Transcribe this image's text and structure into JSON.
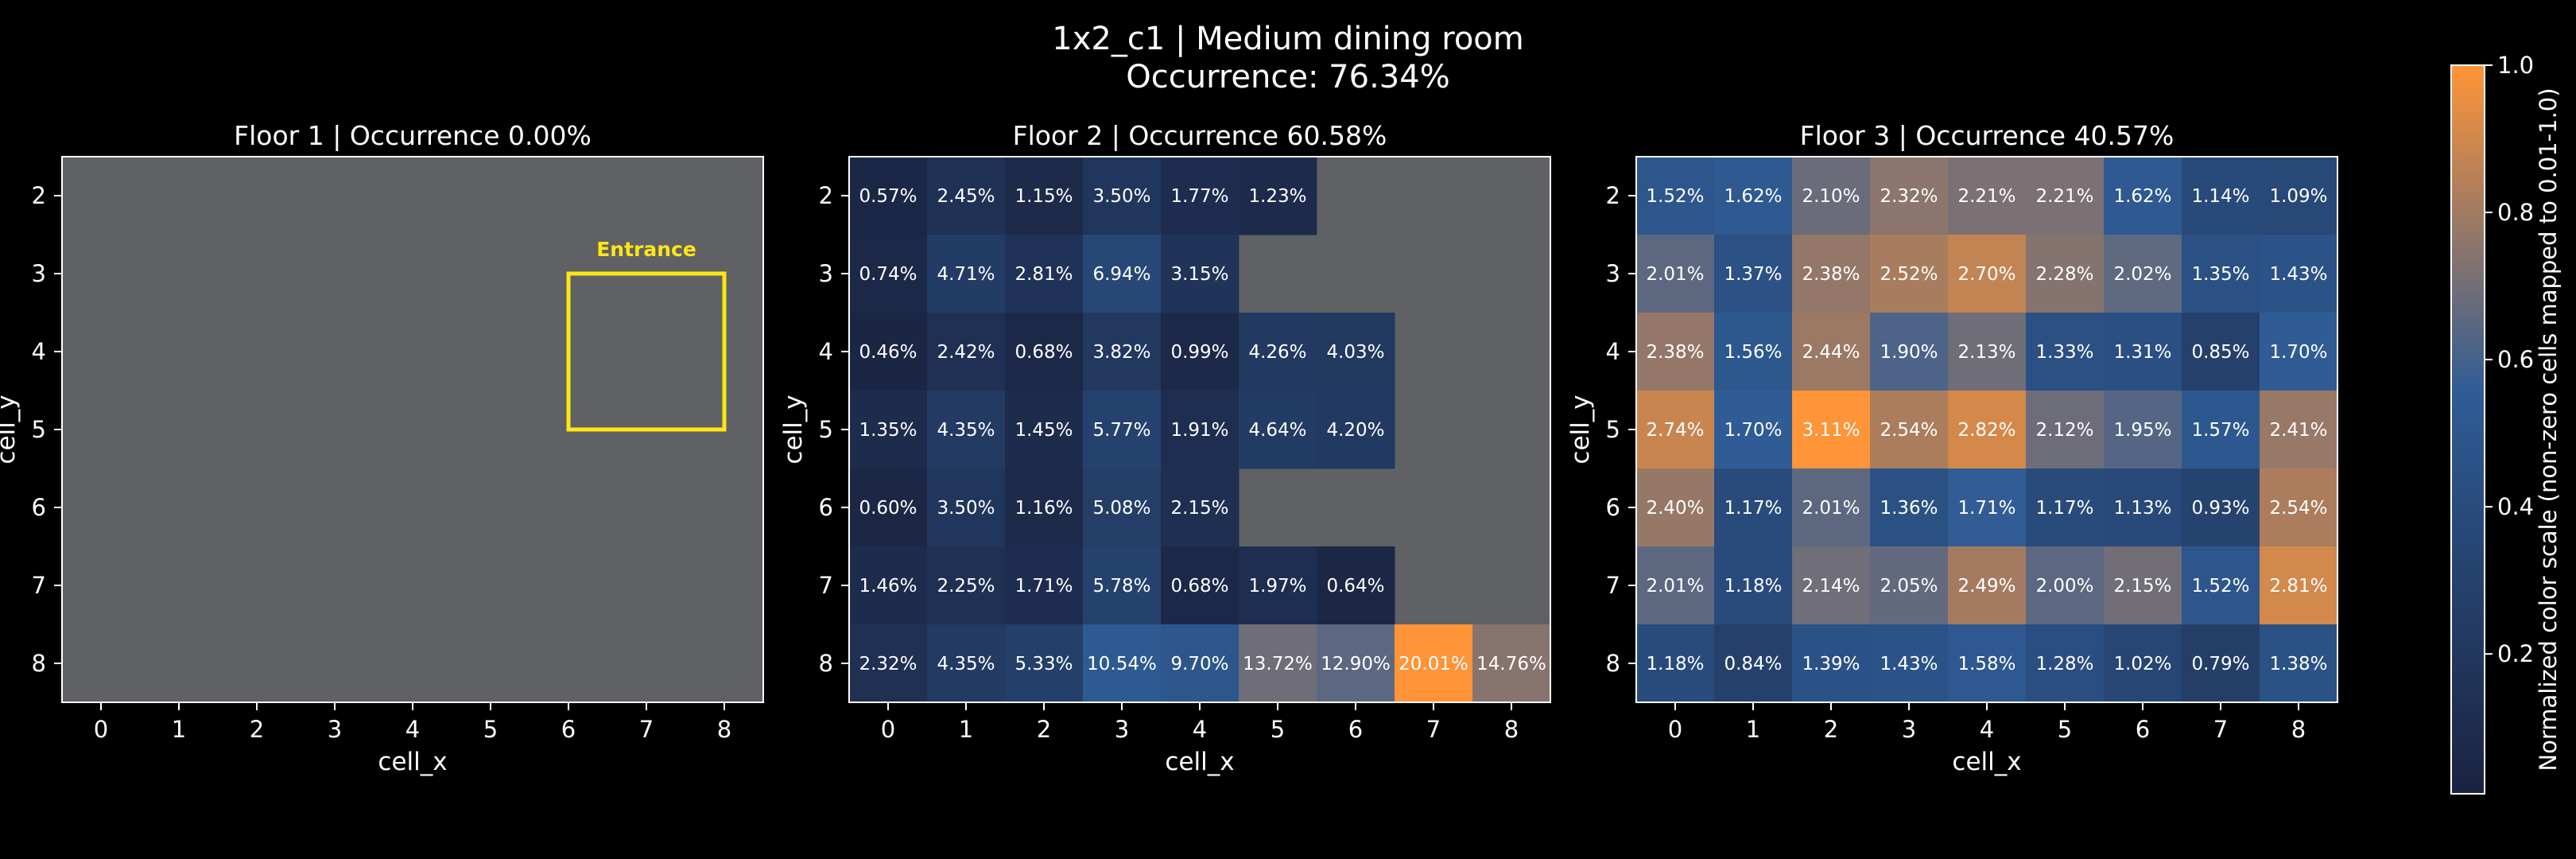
{
  "title": {
    "line1": "1x2_c1 | Medium dining room",
    "line2": "Occurrence: 76.34%"
  },
  "colors": {
    "background": "#000000",
    "empty_cell": "#5f6164",
    "cmap_low": "#1a2340",
    "cmap_mid": "#2f5c95",
    "cmap_high": "#ff9438",
    "entrance": "#ffe614",
    "text": "#ffffff"
  },
  "colorbar": {
    "label": "Normalized color scale (non-zero cells mapped to 0.01-1.0)",
    "ticks": [
      "0.2",
      "0.4",
      "0.6",
      "0.8",
      "1.0"
    ],
    "tick_values": [
      0.2,
      0.4,
      0.6,
      0.8,
      1.0
    ],
    "range": [
      0.01,
      1.0
    ]
  },
  "chart_data": [
    {
      "type": "heatmap",
      "title": "Floor 1 | Occurrence 0.00%",
      "xlabel": "cell_x",
      "ylabel": "cell_y",
      "x": [
        0,
        1,
        2,
        3,
        4,
        5,
        6,
        7,
        8
      ],
      "y": [
        2,
        3,
        4,
        5,
        6,
        7,
        8
      ],
      "x_ticks": [
        "0",
        "1",
        "2",
        "3",
        "4",
        "5",
        "6",
        "7",
        "8"
      ],
      "y_ticks": [
        "2",
        "3",
        "4",
        "5",
        "6",
        "7",
        "8"
      ],
      "values": [
        [
          null,
          null,
          null,
          null,
          null,
          null,
          null,
          null,
          null
        ],
        [
          null,
          null,
          null,
          null,
          null,
          null,
          null,
          null,
          null
        ],
        [
          null,
          null,
          null,
          null,
          null,
          null,
          null,
          null,
          null
        ],
        [
          null,
          null,
          null,
          null,
          null,
          null,
          null,
          null,
          null
        ],
        [
          null,
          null,
          null,
          null,
          null,
          null,
          null,
          null,
          null
        ],
        [
          null,
          null,
          null,
          null,
          null,
          null,
          null,
          null,
          null
        ],
        [
          null,
          null,
          null,
          null,
          null,
          null,
          null,
          null,
          null
        ]
      ],
      "labels": [
        [
          "",
          "",
          "",
          "",
          "",
          "",
          "",
          "",
          ""
        ],
        [
          "",
          "",
          "",
          "",
          "",
          "",
          "",
          "",
          ""
        ],
        [
          "",
          "",
          "",
          "",
          "",
          "",
          "",
          "",
          ""
        ],
        [
          "",
          "",
          "",
          "",
          "",
          "",
          "",
          "",
          ""
        ],
        [
          "",
          "",
          "",
          "",
          "",
          "",
          "",
          "",
          ""
        ],
        [
          "",
          "",
          "",
          "",
          "",
          "",
          "",
          "",
          ""
        ],
        [
          "",
          "",
          "",
          "",
          "",
          "",
          "",
          "",
          ""
        ]
      ],
      "entrance": {
        "label": "Entrance",
        "x_range": [
          7,
          8
        ],
        "y_range": [
          4,
          5
        ]
      }
    },
    {
      "type": "heatmap",
      "title": "Floor 2 | Occurrence 60.58%",
      "xlabel": "cell_x",
      "ylabel": "cell_y",
      "x": [
        0,
        1,
        2,
        3,
        4,
        5,
        6,
        7,
        8
      ],
      "y": [
        2,
        3,
        4,
        5,
        6,
        7,
        8
      ],
      "x_ticks": [
        "0",
        "1",
        "2",
        "3",
        "4",
        "5",
        "6",
        "7",
        "8"
      ],
      "y_ticks": [
        "2",
        "3",
        "4",
        "5",
        "6",
        "7",
        "8"
      ],
      "values": [
        [
          0.57,
          2.45,
          1.15,
          3.5,
          1.77,
          1.23,
          null,
          null,
          null
        ],
        [
          0.74,
          4.71,
          2.81,
          6.94,
          3.15,
          null,
          null,
          null,
          null
        ],
        [
          0.46,
          2.42,
          0.68,
          3.82,
          0.99,
          4.26,
          4.03,
          null,
          null
        ],
        [
          1.35,
          4.35,
          1.45,
          5.77,
          1.91,
          4.64,
          4.2,
          null,
          null
        ],
        [
          0.6,
          3.5,
          1.16,
          5.08,
          2.15,
          null,
          null,
          null,
          null
        ],
        [
          1.46,
          2.25,
          1.71,
          5.78,
          0.68,
          1.97,
          0.64,
          null,
          null
        ],
        [
          2.32,
          4.35,
          5.33,
          10.54,
          9.7,
          13.72,
          12.9,
          20.01,
          14.76
        ]
      ],
      "labels": [
        [
          "0.57%",
          "2.45%",
          "1.15%",
          "3.50%",
          "1.77%",
          "1.23%",
          "",
          "",
          ""
        ],
        [
          "0.74%",
          "4.71%",
          "2.81%",
          "6.94%",
          "3.15%",
          "",
          "",
          "",
          ""
        ],
        [
          "0.46%",
          "2.42%",
          "0.68%",
          "3.82%",
          "0.99%",
          "4.26%",
          "4.03%",
          "",
          ""
        ],
        [
          "1.35%",
          "4.35%",
          "1.45%",
          "5.77%",
          "1.91%",
          "4.64%",
          "4.20%",
          "",
          ""
        ],
        [
          "0.60%",
          "3.50%",
          "1.16%",
          "5.08%",
          "2.15%",
          "",
          "",
          "",
          ""
        ],
        [
          "1.46%",
          "2.25%",
          "1.71%",
          "5.78%",
          "0.68%",
          "1.97%",
          "0.64%",
          "",
          ""
        ],
        [
          "2.32%",
          "4.35%",
          "5.33%",
          "10.54%",
          "9.70%",
          "13.72%",
          "12.90%",
          "20.01%",
          "14.76%"
        ]
      ]
    },
    {
      "type": "heatmap",
      "title": "Floor 3 | Occurrence 40.57%",
      "xlabel": "cell_x",
      "ylabel": "cell_y",
      "x": [
        0,
        1,
        2,
        3,
        4,
        5,
        6,
        7,
        8
      ],
      "y": [
        2,
        3,
        4,
        5,
        6,
        7,
        8
      ],
      "x_ticks": [
        "0",
        "1",
        "2",
        "3",
        "4",
        "5",
        "6",
        "7",
        "8"
      ],
      "y_ticks": [
        "2",
        "3",
        "4",
        "5",
        "6",
        "7",
        "8"
      ],
      "values": [
        [
          1.52,
          1.62,
          2.1,
          2.32,
          2.21,
          2.21,
          1.62,
          1.14,
          1.09
        ],
        [
          2.01,
          1.37,
          2.38,
          2.52,
          2.7,
          2.28,
          2.02,
          1.35,
          1.43
        ],
        [
          2.38,
          1.56,
          2.44,
          1.9,
          2.13,
          1.33,
          1.31,
          0.85,
          1.7
        ],
        [
          2.74,
          1.7,
          3.11,
          2.54,
          2.82,
          2.12,
          1.95,
          1.57,
          2.41
        ],
        [
          2.4,
          1.17,
          2.01,
          1.36,
          1.71,
          1.17,
          1.13,
          0.93,
          2.54
        ],
        [
          2.01,
          1.18,
          2.14,
          2.05,
          2.49,
          2.0,
          2.15,
          1.52,
          2.81
        ],
        [
          1.18,
          0.84,
          1.39,
          1.43,
          1.58,
          1.28,
          1.02,
          0.79,
          1.38
        ]
      ],
      "labels": [
        [
          "1.52%",
          "1.62%",
          "2.10%",
          "2.32%",
          "2.21%",
          "2.21%",
          "1.62%",
          "1.14%",
          "1.09%"
        ],
        [
          "2.01%",
          "1.37%",
          "2.38%",
          "2.52%",
          "2.70%",
          "2.28%",
          "2.02%",
          "1.35%",
          "1.43%"
        ],
        [
          "2.38%",
          "1.56%",
          "2.44%",
          "1.90%",
          "2.13%",
          "1.33%",
          "1.31%",
          "0.85%",
          "1.70%"
        ],
        [
          "2.74%",
          "1.70%",
          "3.11%",
          "2.54%",
          "2.82%",
          "2.12%",
          "1.95%",
          "1.57%",
          "2.41%"
        ],
        [
          "2.40%",
          "1.17%",
          "2.01%",
          "1.36%",
          "1.71%",
          "1.17%",
          "1.13%",
          "0.93%",
          "2.54%"
        ],
        [
          "2.01%",
          "1.18%",
          "2.14%",
          "2.05%",
          "2.49%",
          "2.00%",
          "2.15%",
          "1.52%",
          "2.81%"
        ],
        [
          "1.18%",
          "0.84%",
          "1.39%",
          "1.43%",
          "1.58%",
          "1.28%",
          "1.02%",
          "0.79%",
          "1.38%"
        ]
      ]
    }
  ]
}
